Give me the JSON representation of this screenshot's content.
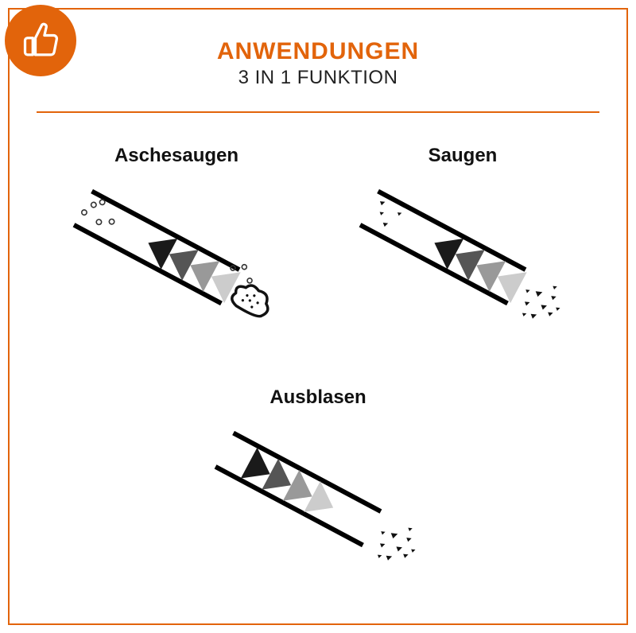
{
  "accent_color": "#e2640b",
  "line_color": "#000000",
  "arrow_colors": [
    "#1a1a1a",
    "#555555",
    "#999999",
    "#cccccc"
  ],
  "header": {
    "title": "ANWENDUNGEN",
    "subtitle": "3 IN 1 FUNKTION"
  },
  "items": {
    "aschesaugen": {
      "label": "Aschesaugen"
    },
    "saugen": {
      "label": "Saugen"
    },
    "ausblasen": {
      "label": "Ausblasen"
    }
  },
  "diagram": {
    "tube_length": 210,
    "tube_gap": 48,
    "tube_stroke": 6,
    "angle_deg": -28
  }
}
